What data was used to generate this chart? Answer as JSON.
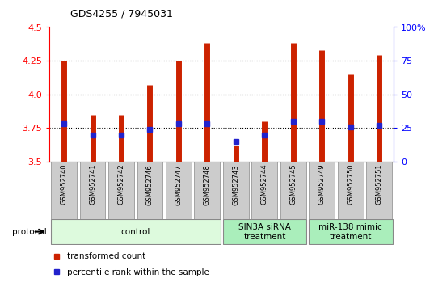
{
  "title": "GDS4255 / 7945031",
  "samples": [
    "GSM952740",
    "GSM952741",
    "GSM952742",
    "GSM952746",
    "GSM952747",
    "GSM952748",
    "GSM952743",
    "GSM952744",
    "GSM952745",
    "GSM952749",
    "GSM952750",
    "GSM952751"
  ],
  "transformed_count": [
    4.25,
    3.85,
    3.85,
    4.07,
    4.25,
    4.38,
    3.62,
    3.8,
    4.38,
    4.33,
    4.15,
    4.29
  ],
  "percentile_rank": [
    28,
    20,
    20,
    24,
    28,
    28,
    15,
    20,
    30,
    30,
    26,
    27
  ],
  "bar_bottom": 3.5,
  "ylim_left": [
    3.5,
    4.5
  ],
  "ylim_right": [
    0,
    100
  ],
  "yticks_left": [
    3.5,
    3.75,
    4.0,
    4.25,
    4.5
  ],
  "yticks_right": [
    0,
    25,
    50,
    75,
    100
  ],
  "ytick_labels_right": [
    "0",
    "25",
    "50",
    "75",
    "100%"
  ],
  "bar_color": "#CC2200",
  "dot_color": "#2222CC",
  "grid_color": "#000000",
  "groups": [
    {
      "label": "control",
      "start": 0,
      "end": 6,
      "color": "#DDFADD"
    },
    {
      "label": "SIN3A siRNA\ntreatment",
      "start": 6,
      "end": 9,
      "color": "#AAEEBB"
    },
    {
      "label": "miR-138 mimic\ntreatment",
      "start": 9,
      "end": 12,
      "color": "#AAEEBB"
    }
  ],
  "protocol_label": "protocol",
  "legend_items": [
    {
      "label": "transformed count",
      "color": "#CC2200"
    },
    {
      "label": "percentile rank within the sample",
      "color": "#2222CC"
    }
  ],
  "bg_color": "#FFFFFF",
  "sample_box_color": "#CCCCCC",
  "sample_box_edge": "#888888"
}
